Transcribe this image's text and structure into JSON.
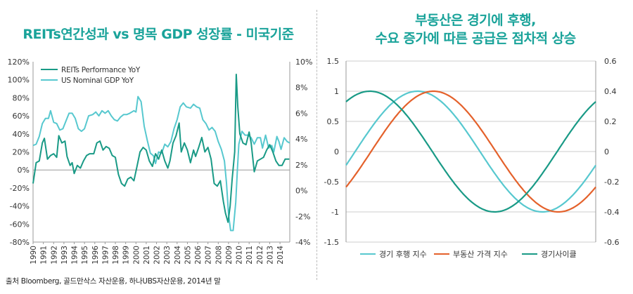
{
  "left_title": "REITs연간성과 vs 명목 GDP 성장률 - 미국기준",
  "right_title_line1": "부동산은 경기에 후행,",
  "right_title_line2": "수요 증가에 따른 공급은 점차적 상승",
  "source": "출처 Bloomberg, 골드만삭스 자산운용, 하나UBS자산운용, 2014년 말",
  "colors": {
    "reits": "#199a86",
    "gdp": "#57c8cf",
    "lag": "#57c8cf",
    "price": "#e4612b",
    "cycle": "#199a86",
    "title": "#1aa39a"
  },
  "chart_data": [
    {
      "type": "line",
      "legend_position": "top-left",
      "x_categories": [
        "1990",
        "1991",
        "1992",
        "1993",
        "1994",
        "1995",
        "1996",
        "1997",
        "1998",
        "1999",
        "2000",
        "2001",
        "2002",
        "2003",
        "2004",
        "2005",
        "2006",
        "2007",
        "2008",
        "2009",
        "2010",
        "2011",
        "2012",
        "2013",
        "2014"
      ],
      "y_left": {
        "min": -80,
        "max": 120,
        "ticks": [
          "120%",
          "100%",
          "80%",
          "60%",
          "40%",
          "20%",
          "0%",
          "-20%",
          "-40%",
          "-60%",
          "-80%"
        ]
      },
      "y_right": {
        "min": -4,
        "max": 10,
        "ticks": [
          "10%",
          "8%",
          "6%",
          "4%",
          "2%",
          "0%",
          "-2%",
          "-4%"
        ]
      },
      "series": [
        {
          "name": "REITs Performance YoY",
          "axis": "left",
          "points": [
            [
              1990.0,
              -15
            ],
            [
              1990.3,
              8
            ],
            [
              1990.6,
              10
            ],
            [
              1990.9,
              30
            ],
            [
              1991.1,
              35
            ],
            [
              1991.4,
              12
            ],
            [
              1991.7,
              16
            ],
            [
              1992.0,
              18
            ],
            [
              1992.3,
              14
            ],
            [
              1992.5,
              38
            ],
            [
              1992.8,
              30
            ],
            [
              1993.1,
              32
            ],
            [
              1993.3,
              15
            ],
            [
              1993.6,
              5
            ],
            [
              1993.8,
              8
            ],
            [
              1994.0,
              -4
            ],
            [
              1994.3,
              5
            ],
            [
              1994.6,
              2
            ],
            [
              1994.9,
              10
            ],
            [
              1995.2,
              16
            ],
            [
              1995.5,
              18
            ],
            [
              1995.9,
              18
            ],
            [
              1996.2,
              30
            ],
            [
              1996.5,
              32
            ],
            [
              1996.8,
              22
            ],
            [
              1997.1,
              26
            ],
            [
              1997.4,
              24
            ],
            [
              1997.7,
              16
            ],
            [
              1998.0,
              14
            ],
            [
              1998.3,
              -5
            ],
            [
              1998.6,
              -15
            ],
            [
              1998.9,
              -18
            ],
            [
              1999.2,
              -10
            ],
            [
              1999.5,
              -8
            ],
            [
              1999.8,
              -12
            ],
            [
              2000.1,
              4
            ],
            [
              2000.4,
              20
            ],
            [
              2000.7,
              25
            ],
            [
              2001.0,
              22
            ],
            [
              2001.3,
              10
            ],
            [
              2001.6,
              4
            ],
            [
              2001.9,
              18
            ],
            [
              2002.2,
              12
            ],
            [
              2002.5,
              22
            ],
            [
              2002.8,
              10
            ],
            [
              2003.1,
              2
            ],
            [
              2003.3,
              10
            ],
            [
              2003.6,
              30
            ],
            [
              2003.9,
              38
            ],
            [
              2004.2,
              52
            ],
            [
              2004.4,
              20
            ],
            [
              2004.7,
              30
            ],
            [
              2005.0,
              22
            ],
            [
              2005.3,
              8
            ],
            [
              2005.6,
              22
            ],
            [
              2005.8,
              15
            ],
            [
              2006.1,
              25
            ],
            [
              2006.4,
              36
            ],
            [
              2006.7,
              20
            ],
            [
              2007.0,
              25
            ],
            [
              2007.3,
              12
            ],
            [
              2007.6,
              -15
            ],
            [
              2007.9,
              -18
            ],
            [
              2008.2,
              -12
            ],
            [
              2008.5,
              -35
            ],
            [
              2008.7,
              -48
            ],
            [
              2008.95,
              -58
            ],
            [
              2009.15,
              -40
            ],
            [
              2009.35,
              -10
            ],
            [
              2009.6,
              20
            ],
            [
              2009.75,
              106
            ],
            [
              2009.9,
              70
            ],
            [
              2010.1,
              40
            ],
            [
              2010.4,
              30
            ],
            [
              2010.7,
              28
            ],
            [
              2011.0,
              42
            ],
            [
              2011.2,
              30
            ],
            [
              2011.5,
              -2
            ],
            [
              2011.8,
              10
            ],
            [
              2012.1,
              12
            ],
            [
              2012.4,
              14
            ],
            [
              2012.7,
              22
            ],
            [
              2013.0,
              28
            ],
            [
              2013.3,
              20
            ],
            [
              2013.6,
              10
            ],
            [
              2013.9,
              5
            ],
            [
              2014.2,
              5
            ],
            [
              2014.5,
              12
            ],
            [
              2014.9,
              12
            ]
          ]
        },
        {
          "name": "US Nominal GDP YoY",
          "axis": "right",
          "points": [
            [
              1990.0,
              3.5
            ],
            [
              1990.3,
              3.6
            ],
            [
              1990.6,
              4.2
            ],
            [
              1990.9,
              5.2
            ],
            [
              1991.2,
              5.6
            ],
            [
              1991.5,
              5.6
            ],
            [
              1991.7,
              6.2
            ],
            [
              1992.0,
              5.3
            ],
            [
              1992.3,
              5.2
            ],
            [
              1992.6,
              4.7
            ],
            [
              1992.9,
              4.8
            ],
            [
              1993.2,
              5.4
            ],
            [
              1993.5,
              6.0
            ],
            [
              1993.8,
              6.0
            ],
            [
              1994.1,
              5.6
            ],
            [
              1994.4,
              4.8
            ],
            [
              1994.7,
              4.6
            ],
            [
              1995.0,
              4.8
            ],
            [
              1995.4,
              5.8
            ],
            [
              1995.8,
              5.9
            ],
            [
              1996.1,
              6.1
            ],
            [
              1996.4,
              5.8
            ],
            [
              1996.7,
              6.2
            ],
            [
              1997.0,
              6.0
            ],
            [
              1997.3,
              6.2
            ],
            [
              1997.6,
              5.8
            ],
            [
              1997.9,
              5.5
            ],
            [
              1998.2,
              5.4
            ],
            [
              1998.5,
              5.7
            ],
            [
              1998.8,
              5.9
            ],
            [
              1999.1,
              5.9
            ],
            [
              1999.4,
              6.0
            ],
            [
              1999.8,
              6.2
            ],
            [
              2000.0,
              6.1
            ],
            [
              2000.2,
              7.3
            ],
            [
              2000.5,
              6.9
            ],
            [
              2000.8,
              5.0
            ],
            [
              2001.1,
              3.9
            ],
            [
              2001.4,
              2.9
            ],
            [
              2001.7,
              2.7
            ],
            [
              2001.9,
              2.1
            ],
            [
              2002.2,
              3.0
            ],
            [
              2002.5,
              2.9
            ],
            [
              2002.8,
              3.6
            ],
            [
              2003.1,
              3.4
            ],
            [
              2003.4,
              3.8
            ],
            [
              2003.7,
              4.8
            ],
            [
              2004.0,
              5.5
            ],
            [
              2004.3,
              6.5
            ],
            [
              2004.6,
              6.8
            ],
            [
              2004.9,
              6.5
            ],
            [
              2005.3,
              6.4
            ],
            [
              2005.6,
              6.7
            ],
            [
              2005.9,
              6.5
            ],
            [
              2006.2,
              6.4
            ],
            [
              2006.5,
              5.5
            ],
            [
              2006.8,
              5.2
            ],
            [
              2007.1,
              4.7
            ],
            [
              2007.4,
              4.9
            ],
            [
              2007.7,
              4.6
            ],
            [
              2008.0,
              3.8
            ],
            [
              2008.3,
              3.2
            ],
            [
              2008.6,
              2.3
            ],
            [
              2008.8,
              0.6
            ],
            [
              2009.0,
              -1.9
            ],
            [
              2009.2,
              -3.1
            ],
            [
              2009.45,
              -3.1
            ],
            [
              2009.7,
              -0.9
            ],
            [
              2009.85,
              1.5
            ],
            [
              2010.0,
              3.6
            ],
            [
              2010.3,
              4.6
            ],
            [
              2010.6,
              4.3
            ],
            [
              2010.9,
              4.3
            ],
            [
              2011.2,
              4.1
            ],
            [
              2011.5,
              3.6
            ],
            [
              2011.8,
              4.1
            ],
            [
              2012.1,
              4.1
            ],
            [
              2012.3,
              3.3
            ],
            [
              2012.6,
              4.3
            ],
            [
              2012.9,
              3.3
            ],
            [
              2013.2,
              3.5
            ],
            [
              2013.4,
              3.0
            ],
            [
              2013.7,
              4.2
            ],
            [
              2013.9,
              3.8
            ],
            [
              2014.1,
              3.2
            ],
            [
              2014.4,
              4.1
            ],
            [
              2014.7,
              3.8
            ],
            [
              2014.95,
              3.7
            ]
          ]
        }
      ]
    },
    {
      "type": "line",
      "legend_position": "bottom",
      "x_range": [
        0,
        1
      ],
      "y_left": {
        "min": -1.5,
        "max": 1.5,
        "ticks": [
          "1.5",
          "1",
          "0.5",
          "0",
          "-0.5",
          "-1",
          "-1.5"
        ]
      },
      "y_right": {
        "min": -0.6,
        "max": 0.6,
        "ticks": [
          "0.6",
          "0.4",
          "0.2",
          "0",
          "-0.2",
          "-0.4",
          "-0.6"
        ]
      },
      "series": [
        {
          "name": "경기 후행 지수",
          "axis": "left",
          "amplitude": 1,
          "phase": 1.8,
          "period": 1.0
        },
        {
          "name": "부동산 가격 지수",
          "axis": "left",
          "amplitude": 1,
          "phase": 2.2,
          "period": 1.0
        },
        {
          "name": "경기사이클",
          "axis": "right",
          "amplitude": 0.4,
          "phase": 0.6,
          "period": 1.0
        }
      ]
    }
  ]
}
